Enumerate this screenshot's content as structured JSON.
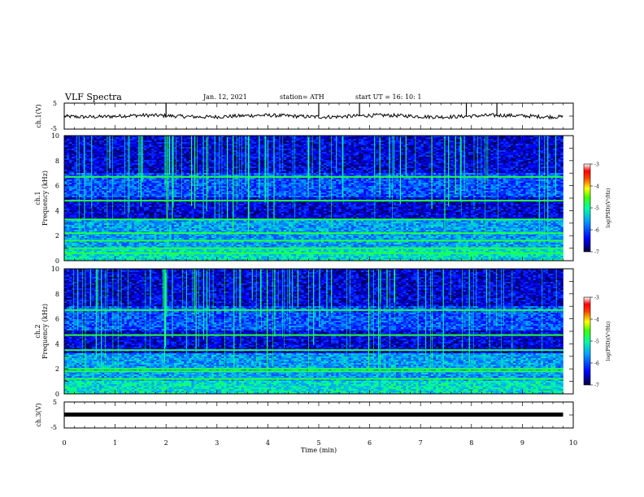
{
  "header": {
    "title": "VLF Spectra",
    "date": "Jan. 12, 2021",
    "station": "station= ATH",
    "start": "start UT = 16: 10: 1"
  },
  "chart_data": [
    {
      "type": "line",
      "panel": "ch1-waveform",
      "ylabel": "ch.1(V)",
      "ylim": [
        -5,
        5
      ],
      "yticks": [
        "5",
        "-5"
      ],
      "xlim": [
        0,
        10
      ],
      "trace_level_v": 0.0,
      "spike_times_min": [
        2.0,
        5.0,
        5.8,
        7.9,
        8.5
      ]
    },
    {
      "type": "heatmap",
      "panel": "ch1-spectrogram",
      "ylabel": "ch.1 Frequency (kHz)",
      "ylim": [
        0,
        10
      ],
      "yticks": [
        "0",
        "2",
        "4",
        "6",
        "8",
        "10"
      ],
      "data_extent_min": 9.8,
      "notable_lines_khz": [
        6.7,
        4.8,
        3.3,
        2.2,
        1.6,
        1.0,
        0.6
      ],
      "colorbar": {
        "label": "log(PSD)(V²/Hz)",
        "range": [
          -7,
          -3
        ],
        "ticks": [
          "-3",
          "-4",
          "-5",
          "-6",
          "-7"
        ]
      }
    },
    {
      "type": "heatmap",
      "panel": "ch2-spectrogram",
      "ylabel": "ch.2 Frequency (kHz)",
      "ylim": [
        0,
        10
      ],
      "yticks": [
        "0",
        "2",
        "4",
        "6",
        "8",
        "10"
      ],
      "data_extent_min": 9.8,
      "notable_lines_khz": [
        6.7,
        4.7,
        3.5,
        2.0,
        1.8,
        1.2
      ],
      "colorbar": {
        "label": "log(PSD)(V²/Hz)",
        "range": [
          -7,
          -3
        ],
        "ticks": [
          "-3",
          "-4",
          "-5",
          "-6",
          "-7"
        ]
      }
    },
    {
      "type": "line",
      "panel": "ch3-waveform",
      "ylabel": "ch.3(V)",
      "ylim": [
        -5,
        5
      ],
      "yticks": [
        "5",
        "-5"
      ],
      "trace_level_v": 0.0,
      "xlabel": "Time (min)",
      "xlim": [
        0,
        10
      ],
      "xticks": [
        "0",
        "1",
        "2",
        "3",
        "4",
        "5",
        "6",
        "7",
        "8",
        "9",
        "10"
      ]
    }
  ],
  "colors": {
    "text": "#000000",
    "trace": "#000000",
    "background": "#ffffff"
  },
  "colormap": [
    "#00007a",
    "#0000ff",
    "#0080ff",
    "#00e0e0",
    "#00ff60",
    "#80ff00",
    "#ffff00",
    "#ff8000",
    "#ff0000",
    "#ffffff"
  ]
}
